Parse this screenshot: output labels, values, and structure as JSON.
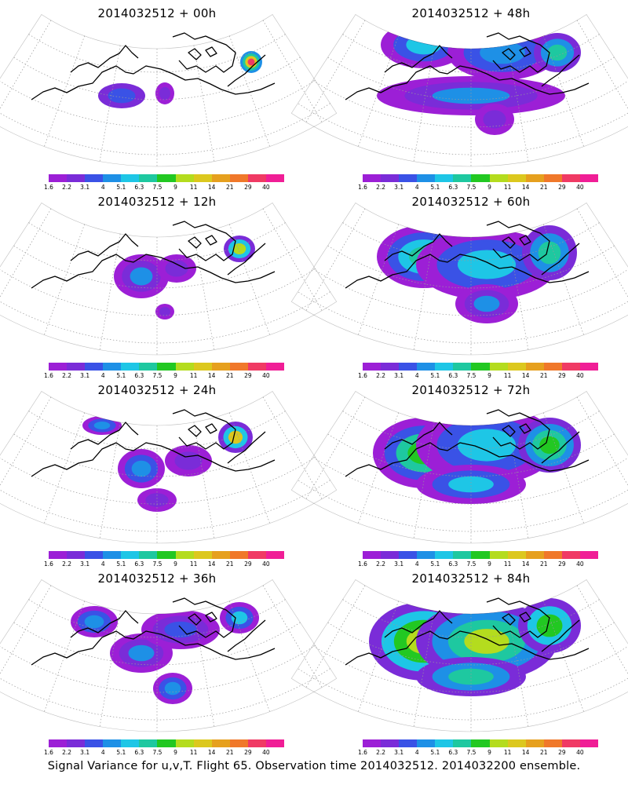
{
  "footer": "Signal Variance for u,v,T. Flight 65. Observation time 2014032512. 2014032200 ensemble.",
  "colorbar": {
    "colors": [
      "#9c1fd6",
      "#7a2cd8",
      "#3a52e6",
      "#1e90e6",
      "#1ec6e6",
      "#1ec8a0",
      "#22c822",
      "#b4dc1e",
      "#dcc81e",
      "#e6a01e",
      "#f0782a",
      "#f03a64",
      "#f01e96"
    ],
    "labels": [
      "1.6",
      "2.2",
      "3.1",
      "4",
      "5.1",
      "6.3",
      "7.5",
      "9",
      "11",
      "14",
      "21",
      "29",
      "40"
    ]
  },
  "panels": [
    {
      "title": "2014032512 + 00h",
      "blobs": [
        {
          "x": -45,
          "y": 25,
          "rx": 30,
          "ry": 16,
          "c": [
            1,
            2
          ]
        },
        {
          "x": 10,
          "y": 22,
          "rx": 12,
          "ry": 14,
          "c": [
            0,
            1
          ]
        },
        {
          "x": 120,
          "y": -18,
          "rx": 14,
          "ry": 14,
          "c": [
            3,
            5,
            8,
            11
          ]
        }
      ]
    },
    {
      "title": "2014032512 + 48h",
      "blobs": [
        {
          "x": -60,
          "y": -40,
          "rx": 55,
          "ry": 30,
          "c": [
            0,
            2,
            4
          ]
        },
        {
          "x": 40,
          "y": -30,
          "rx": 70,
          "ry": 35,
          "c": [
            0,
            2,
            3
          ]
        },
        {
          "x": 110,
          "y": -30,
          "rx": 30,
          "ry": 25,
          "c": [
            1,
            3,
            5
          ]
        },
        {
          "x": 0,
          "y": 25,
          "rx": 120,
          "ry": 25,
          "c": [
            0,
            1,
            3
          ]
        },
        {
          "x": 30,
          "y": 55,
          "rx": 25,
          "ry": 20,
          "c": [
            0,
            1
          ]
        }
      ]
    },
    {
      "title": "2014032512 + 12h",
      "blobs": [
        {
          "x": -20,
          "y": 15,
          "rx": 35,
          "ry": 28,
          "c": [
            0,
            1,
            3
          ]
        },
        {
          "x": 25,
          "y": 5,
          "rx": 25,
          "ry": 18,
          "c": [
            0,
            1
          ]
        },
        {
          "x": 10,
          "y": 60,
          "rx": 12,
          "ry": 10,
          "c": [
            0,
            1
          ]
        },
        {
          "x": 105,
          "y": -20,
          "rx": 20,
          "ry": 17,
          "c": [
            1,
            4,
            7
          ]
        }
      ]
    },
    {
      "title": "2014032512 + 60h",
      "blobs": [
        {
          "x": -60,
          "y": -10,
          "rx": 60,
          "ry": 40,
          "c": [
            0,
            2,
            4,
            5
          ]
        },
        {
          "x": 20,
          "y": 0,
          "rx": 90,
          "ry": 45,
          "c": [
            0,
            2,
            4
          ]
        },
        {
          "x": 100,
          "y": -15,
          "rx": 35,
          "ry": 35,
          "c": [
            1,
            3,
            5
          ]
        },
        {
          "x": 20,
          "y": 50,
          "rx": 40,
          "ry": 25,
          "c": [
            0,
            1,
            3
          ]
        }
      ]
    },
    {
      "title": "2014032512 + 24h",
      "blobs": [
        {
          "x": -70,
          "y": -35,
          "rx": 25,
          "ry": 12,
          "c": [
            0,
            2,
            3
          ]
        },
        {
          "x": -20,
          "y": 20,
          "rx": 30,
          "ry": 25,
          "c": [
            0,
            2,
            3
          ]
        },
        {
          "x": 0,
          "y": 60,
          "rx": 25,
          "ry": 15,
          "c": [
            0,
            1
          ]
        },
        {
          "x": 40,
          "y": 10,
          "rx": 30,
          "ry": 20,
          "c": [
            0,
            1
          ]
        },
        {
          "x": 100,
          "y": -20,
          "rx": 22,
          "ry": 20,
          "c": [
            1,
            4,
            8
          ]
        }
      ]
    },
    {
      "title": "2014032512 + 72h",
      "blobs": [
        {
          "x": -60,
          "y": 0,
          "rx": 65,
          "ry": 45,
          "c": [
            0,
            2,
            5,
            6
          ]
        },
        {
          "x": 20,
          "y": -10,
          "rx": 90,
          "ry": 50,
          "c": [
            0,
            2,
            4
          ]
        },
        {
          "x": 100,
          "y": -10,
          "rx": 40,
          "ry": 35,
          "c": [
            1,
            3,
            5,
            6
          ]
        },
        {
          "x": 0,
          "y": 40,
          "rx": 70,
          "ry": 25,
          "c": [
            0,
            2,
            4
          ]
        }
      ]
    },
    {
      "title": "2014032512 + 36h",
      "blobs": [
        {
          "x": -80,
          "y": -25,
          "rx": 30,
          "ry": 20,
          "c": [
            0,
            2,
            3
          ]
        },
        {
          "x": -20,
          "y": 15,
          "rx": 40,
          "ry": 25,
          "c": [
            0,
            1,
            3
          ]
        },
        {
          "x": 30,
          "y": -15,
          "rx": 50,
          "ry": 25,
          "c": [
            0,
            1,
            2
          ]
        },
        {
          "x": 20,
          "y": 60,
          "rx": 25,
          "ry": 20,
          "c": [
            0,
            2,
            3
          ]
        },
        {
          "x": 105,
          "y": -30,
          "rx": 25,
          "ry": 20,
          "c": [
            0,
            2,
            4
          ]
        }
      ]
    },
    {
      "title": "2014032512 + 84h",
      "blobs": [
        {
          "x": -60,
          "y": 0,
          "rx": 70,
          "ry": 50,
          "c": [
            1,
            4,
            6,
            7
          ]
        },
        {
          "x": 20,
          "y": 0,
          "rx": 90,
          "ry": 50,
          "c": [
            1,
            3,
            5,
            7
          ]
        },
        {
          "x": 100,
          "y": -20,
          "rx": 40,
          "ry": 35,
          "c": [
            1,
            4,
            6
          ]
        },
        {
          "x": 0,
          "y": 45,
          "rx": 70,
          "ry": 25,
          "c": [
            1,
            3,
            5
          ]
        }
      ]
    }
  ]
}
